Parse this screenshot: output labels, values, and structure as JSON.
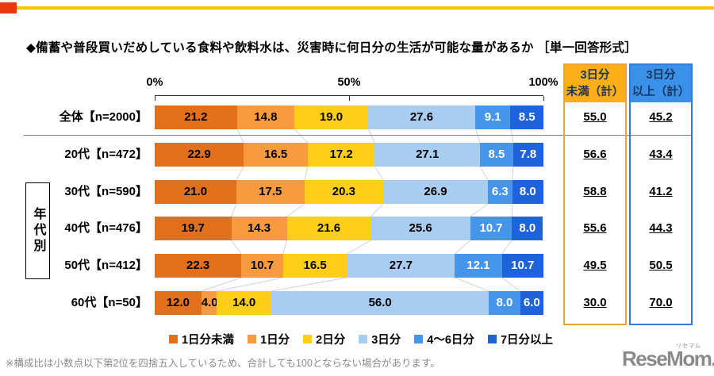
{
  "meta": {
    "footnote": "※構成比は小数点以下第2位を四捨五入しているため、合計しても100とならない場合があります。",
    "logo_text": "ReseMom.",
    "logo_ruby": "リセマム",
    "accent_colors": {
      "line": "#F5C400",
      "square": "#E8380D"
    }
  },
  "chart_data": {
    "type": "stacked_bar_horizontal",
    "title": "◆備蓄や普段買いだめしている食料や飲料水は、災害時に何日分の生活が可能な量があるか ［単一回答形式］",
    "xlim": [
      0,
      100
    ],
    "axis_ticks": [
      {
        "label": "0%",
        "pct": 0
      },
      {
        "label": "50%",
        "pct": 50
      },
      {
        "label": "100%",
        "pct": 100
      }
    ],
    "group_label": "年代別",
    "legend": [
      {
        "label": "1日分未満",
        "color": "#E0701B",
        "value_text_color": "#000000"
      },
      {
        "label": "1日分",
        "color": "#F89A40",
        "value_text_color": "#000000"
      },
      {
        "label": "2日分",
        "color": "#FFCE17",
        "value_text_color": "#000000"
      },
      {
        "label": "3日分",
        "color": "#A9CCF1",
        "value_text_color": "#000000"
      },
      {
        "label": "4～6日分",
        "color": "#4795EA",
        "value_text_color": "#FFFFFF"
      },
      {
        "label": "7日分以上",
        "color": "#1E63DB",
        "value_text_color": "#FFFFFF"
      }
    ],
    "rows": [
      {
        "label": "全体【n=2000】",
        "values": [
          "21.2",
          "14.8",
          "19.0",
          "27.6",
          "9.1",
          "8.5"
        ],
        "under3_total": "55.0",
        "over3_total": "45.2"
      },
      {
        "label": "20代【n=472】",
        "values": [
          "22.9",
          "16.5",
          "17.2",
          "27.1",
          "8.5",
          "7.8"
        ],
        "under3_total": "56.6",
        "over3_total": "43.4"
      },
      {
        "label": "30代【n=590】",
        "values": [
          "21.0",
          "17.5",
          "20.3",
          "26.9",
          "6.3",
          "8.0"
        ],
        "under3_total": "58.8",
        "over3_total": "41.2"
      },
      {
        "label": "40代【n=476】",
        "values": [
          "19.7",
          "14.3",
          "21.6",
          "25.6",
          "10.7",
          "8.0"
        ],
        "under3_total": "55.6",
        "over3_total": "44.3"
      },
      {
        "label": "50代【n=412】",
        "values": [
          "22.3",
          "10.7",
          "16.5",
          "27.7",
          "12.1",
          "10.7"
        ],
        "under3_total": "49.5",
        "over3_total": "50.5"
      },
      {
        "label": "60代【n=50】",
        "values": [
          "12.0",
          "4.0",
          "14.0",
          "56.0",
          "8.0",
          "6.0"
        ],
        "under3_total": "30.0",
        "over3_total": "70.0"
      }
    ],
    "summary_columns": [
      {
        "lines": [
          "3日分",
          "未満（計）"
        ],
        "header_bg": "#FBAE17",
        "border_color": "#EDA233",
        "header_text_color": "#17375D"
      },
      {
        "lines": [
          "3日分",
          "以上（計）"
        ],
        "header_bg": "#3B91EA",
        "border_color": "#2E7CDB",
        "header_text_color": "#17375D"
      }
    ]
  }
}
